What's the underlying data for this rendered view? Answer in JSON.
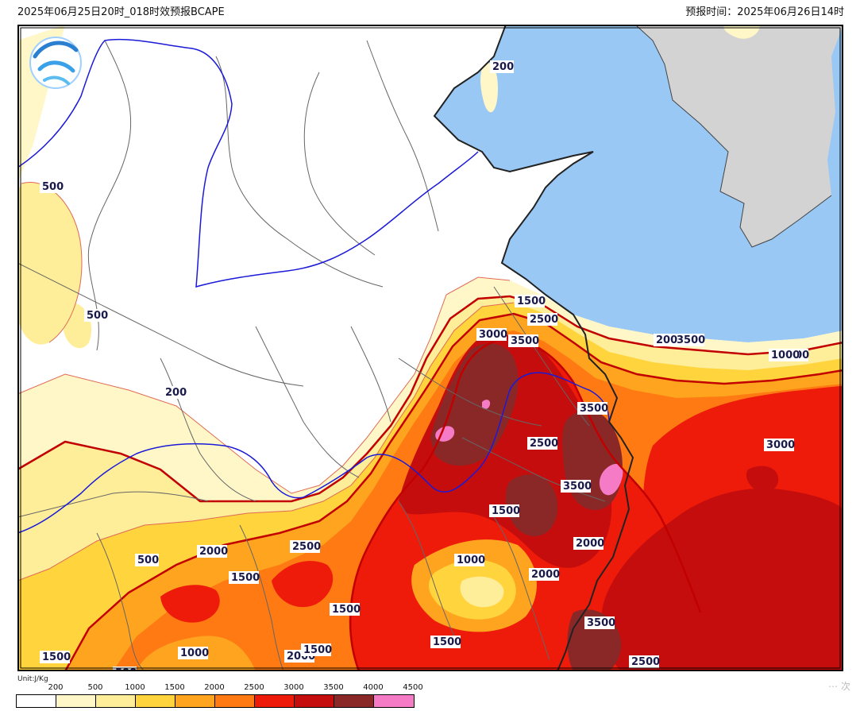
{
  "header": {
    "left_title": "2025年06月25日20时_018时效预报BCAPE",
    "right_title": "预报时间：2025年06月26日14时"
  },
  "map": {
    "colors": {
      "land": "#ffffff",
      "sea": "#99c8f5",
      "korea": "#d3d3d3",
      "c200": "#fff7c8",
      "c500": "#ffee99",
      "c1000": "#ffd43d",
      "c1500": "#ffa41e",
      "c2000": "#ff7a12",
      "c2500": "#ee1a0a",
      "c3000": "#c50d0d",
      "c3500": "#8a2828",
      "c4000": "#f57bc6"
    },
    "contour_labels": [
      "200",
      "500",
      "500",
      "200",
      "1500",
      "2500",
      "3000",
      "3500",
      "3500",
      "2500",
      "3500",
      "1500",
      "3500",
      "1000",
      "1000",
      "2000",
      "2500",
      "2000",
      "1500",
      "1500",
      "500",
      "1000",
      "1500",
      "2000",
      "1500",
      "1500",
      "500",
      "3500",
      "2500",
      "200",
      "1000",
      "3000",
      "2000",
      "2000"
    ]
  },
  "legend": {
    "unit": "Unit:J/Kg",
    "ticks": [
      "200",
      "500",
      "1000",
      "1500",
      "2000",
      "2500",
      "3000",
      "3500",
      "4000",
      "4500"
    ],
    "colors": [
      "#ffffff",
      "#fff7c8",
      "#ffee99",
      "#ffd43d",
      "#ffa41e",
      "#ff7a12",
      "#ee1a0a",
      "#c50d0d",
      "#8a2828",
      "#f57bc6"
    ]
  }
}
